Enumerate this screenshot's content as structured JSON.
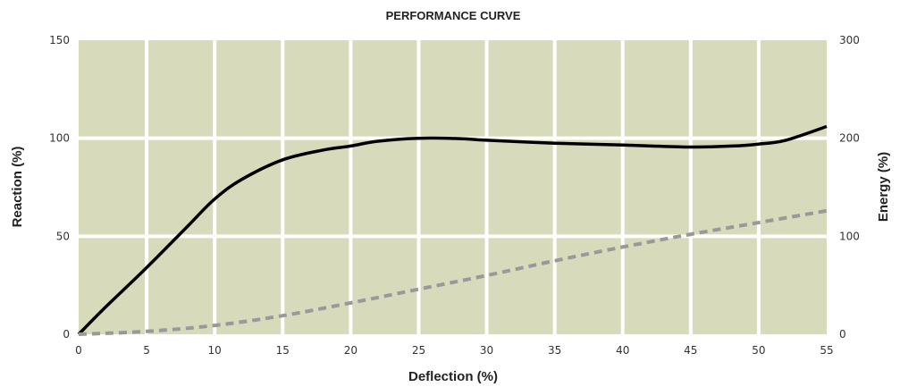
{
  "chart_data": {
    "type": "line",
    "title": "PERFORMANCE CURVE",
    "xlabel": "Deflection (%)",
    "ylabel_left": "Reaction (%)",
    "ylabel_right": "Energy (%)",
    "xlim": [
      0,
      55
    ],
    "ylim_left": [
      0,
      150
    ],
    "ylim_right": [
      0,
      300
    ],
    "x_ticks": [
      "0",
      "5",
      "10",
      "15",
      "20",
      "25",
      "30",
      "35",
      "40",
      "45",
      "50",
      "55"
    ],
    "y_ticks_left": [
      "0",
      "50",
      "100",
      "150"
    ],
    "y_ticks_right": [
      "0",
      "100",
      "200",
      "300"
    ],
    "grid": true,
    "plot_background": "#d8dbbb",
    "grid_color": "#ffffff",
    "series": [
      {
        "axis": "left",
        "style": "solid",
        "color": "#000000",
        "x": [
          0,
          2,
          5,
          8,
          10,
          12,
          15,
          18,
          20,
          22,
          25,
          28,
          30,
          35,
          40,
          45,
          48,
          50,
          52,
          55
        ],
        "y": [
          0,
          14,
          34,
          55,
          69,
          79,
          89,
          94,
          96,
          98.5,
          100,
          99.8,
          99,
          97.5,
          96.5,
          95.5,
          96,
          97,
          99,
          106
        ]
      },
      {
        "axis": "right",
        "style": "dashed",
        "color": "#999999",
        "x": [
          0,
          5,
          10,
          15,
          20,
          25,
          30,
          35,
          40,
          45,
          50,
          55
        ],
        "y": [
          0,
          3,
          9,
          19,
          32,
          46,
          60,
          75,
          89,
          102,
          114,
          126
        ]
      }
    ]
  }
}
